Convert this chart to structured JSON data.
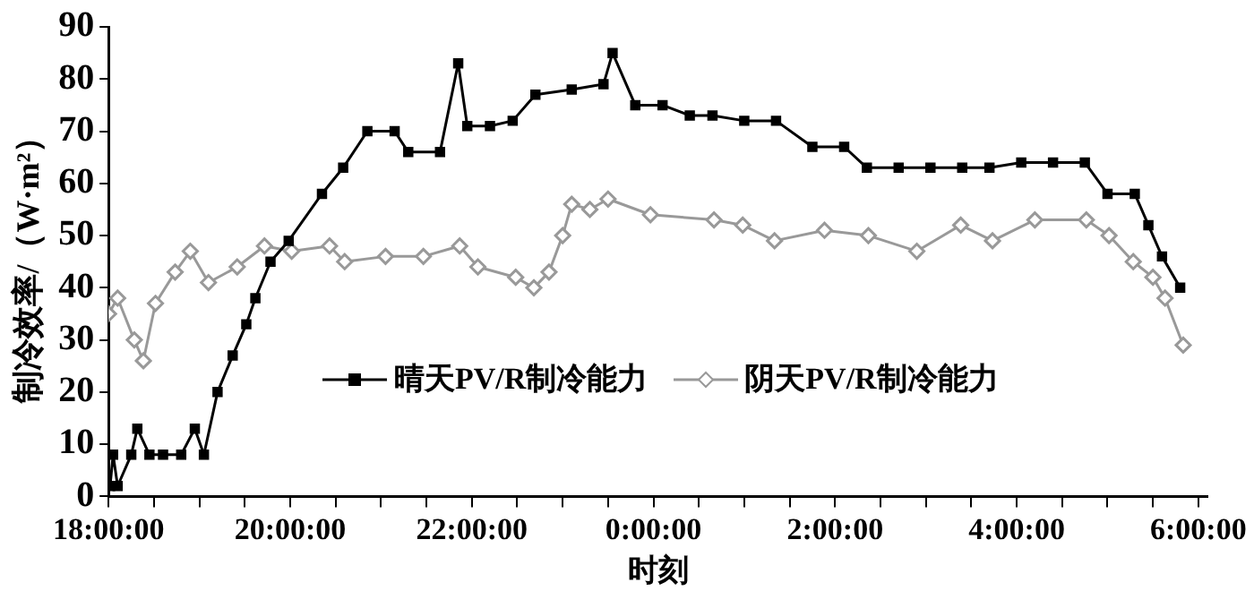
{
  "chart_data": {
    "type": "line",
    "xlabel": "时刻",
    "ylabel": "制冷效率/（W·m²）",
    "xlim": [
      "2000-01-01T18:00",
      "2000-01-02T06:06"
    ],
    "ylim": [
      0,
      90
    ],
    "yticks": [
      0,
      10,
      20,
      30,
      40,
      50,
      60,
      70,
      80,
      90
    ],
    "xticks": [
      {
        "value": "2000-01-01T18:00",
        "label": "18:00:00"
      },
      {
        "value": "2000-01-01T18:30",
        "label": null
      },
      {
        "value": "2000-01-01T19:00",
        "label": null
      },
      {
        "value": "2000-01-01T19:30",
        "label": null
      },
      {
        "value": "2000-01-01T20:00",
        "label": "20:00:00"
      },
      {
        "value": "2000-01-01T20:30",
        "label": null
      },
      {
        "value": "2000-01-01T21:00",
        "label": null
      },
      {
        "value": "2000-01-01T21:30",
        "label": null
      },
      {
        "value": "2000-01-01T22:00",
        "label": "22:00:00"
      },
      {
        "value": "2000-01-01T22:30",
        "label": null
      },
      {
        "value": "2000-01-01T23:00",
        "label": null
      },
      {
        "value": "2000-01-01T23:30",
        "label": null
      },
      {
        "value": "2000-01-02T00:00",
        "label": "0:00:00"
      },
      {
        "value": "2000-01-02T00:30",
        "label": null
      },
      {
        "value": "2000-01-02T01:00",
        "label": null
      },
      {
        "value": "2000-01-02T01:30",
        "label": null
      },
      {
        "value": "2000-01-02T02:00",
        "label": "2:00:00"
      },
      {
        "value": "2000-01-02T02:30",
        "label": null
      },
      {
        "value": "2000-01-02T03:00",
        "label": null
      },
      {
        "value": "2000-01-02T03:30",
        "label": null
      },
      {
        "value": "2000-01-02T04:00",
        "label": "4:00:00"
      },
      {
        "value": "2000-01-02T04:30",
        "label": null
      },
      {
        "value": "2000-01-02T05:00",
        "label": null
      },
      {
        "value": "2000-01-02T05:30",
        "label": null
      },
      {
        "value": "2000-01-02T06:00",
        "label": "6:00:00"
      }
    ],
    "grid": false,
    "legend": "bottom right",
    "series": [
      {
        "name": "晴天PV/R制冷能力",
        "color": "#000000",
        "marker": "square",
        "x": [
          "2000-01-01T18:01",
          "2000-01-01T18:03",
          "2000-01-01T18:06",
          "2000-01-01T18:15",
          "2000-01-01T18:19",
          "2000-01-01T18:27",
          "2000-01-01T18:36",
          "2000-01-01T18:48",
          "2000-01-01T18:57",
          "2000-01-01T19:03",
          "2000-01-01T19:12",
          "2000-01-01T19:22",
          "2000-01-01T19:31",
          "2000-01-01T19:37",
          "2000-01-01T19:47",
          "2000-01-01T19:59",
          "2000-01-01T20:21",
          "2000-01-01T20:35",
          "2000-01-01T20:51",
          "2000-01-01T21:09",
          "2000-01-01T21:18",
          "2000-01-01T21:39",
          "2000-01-01T21:51",
          "2000-01-01T21:57",
          "2000-01-01T22:12",
          "2000-01-01T22:27",
          "2000-01-01T22:42",
          "2000-01-01T23:06",
          "2000-01-01T23:27",
          "2000-01-01T23:33",
          "2000-01-01T23:48",
          "2000-01-02T00:06",
          "2000-01-02T00:24",
          "2000-01-02T00:39",
          "2000-01-02T01:00",
          "2000-01-02T01:21",
          "2000-01-02T01:45",
          "2000-01-02T02:06",
          "2000-01-02T02:21",
          "2000-01-02T02:42",
          "2000-01-02T03:03",
          "2000-01-02T03:24",
          "2000-01-02T03:42",
          "2000-01-02T04:03",
          "2000-01-02T04:24",
          "2000-01-02T04:45",
          "2000-01-02T05:00",
          "2000-01-02T05:18",
          "2000-01-02T05:27",
          "2000-01-02T05:36",
          "2000-01-02T05:48"
        ],
        "values": [
          2,
          8,
          2,
          8,
          13,
          8,
          8,
          8,
          13,
          8,
          20,
          27,
          33,
          38,
          45,
          49,
          58,
          63,
          70,
          70,
          66,
          66,
          83,
          71,
          71,
          72,
          77,
          78,
          79,
          85,
          75,
          75,
          73,
          73,
          72,
          72,
          67,
          67,
          63,
          63,
          63,
          63,
          63,
          64,
          64,
          64,
          58,
          58,
          52,
          46,
          40
        ]
      },
      {
        "name": "阴天PV/R制冷能力",
        "color": "#999999",
        "marker": "diamond",
        "x": [
          "2000-01-01T18:00",
          "2000-01-01T18:06",
          "2000-01-01T18:17",
          "2000-01-01T18:23",
          "2000-01-01T18:31",
          "2000-01-01T18:44",
          "2000-01-01T18:54",
          "2000-01-01T19:06",
          "2000-01-01T19:25",
          "2000-01-01T19:43",
          "2000-01-01T20:01",
          "2000-01-01T20:26",
          "2000-01-01T20:36",
          "2000-01-01T21:03",
          "2000-01-01T21:28",
          "2000-01-01T21:52",
          "2000-01-01T22:04",
          "2000-01-01T22:29",
          "2000-01-01T22:41",
          "2000-01-01T22:51",
          "2000-01-01T23:00",
          "2000-01-01T23:06",
          "2000-01-01T23:18",
          "2000-01-01T23:30",
          "2000-01-01T23:58",
          "2000-01-02T00:40",
          "2000-01-02T00:59",
          "2000-01-02T01:20",
          "2000-01-02T01:53",
          "2000-01-02T02:22",
          "2000-01-02T02:54",
          "2000-01-02T03:23",
          "2000-01-02T03:44",
          "2000-01-02T04:12",
          "2000-01-02T04:46",
          "2000-01-02T05:01",
          "2000-01-02T05:17",
          "2000-01-02T05:30",
          "2000-01-02T05:38",
          "2000-01-02T05:50"
        ],
        "values": [
          35,
          38,
          30,
          26,
          37,
          43,
          47,
          41,
          44,
          48,
          47,
          48,
          45,
          46,
          46,
          48,
          44,
          42,
          40,
          43,
          50,
          56,
          55,
          57,
          54,
          53,
          52,
          49,
          51,
          50,
          47,
          52,
          49,
          53,
          53,
          50,
          45,
          42,
          38,
          29
        ]
      }
    ]
  }
}
